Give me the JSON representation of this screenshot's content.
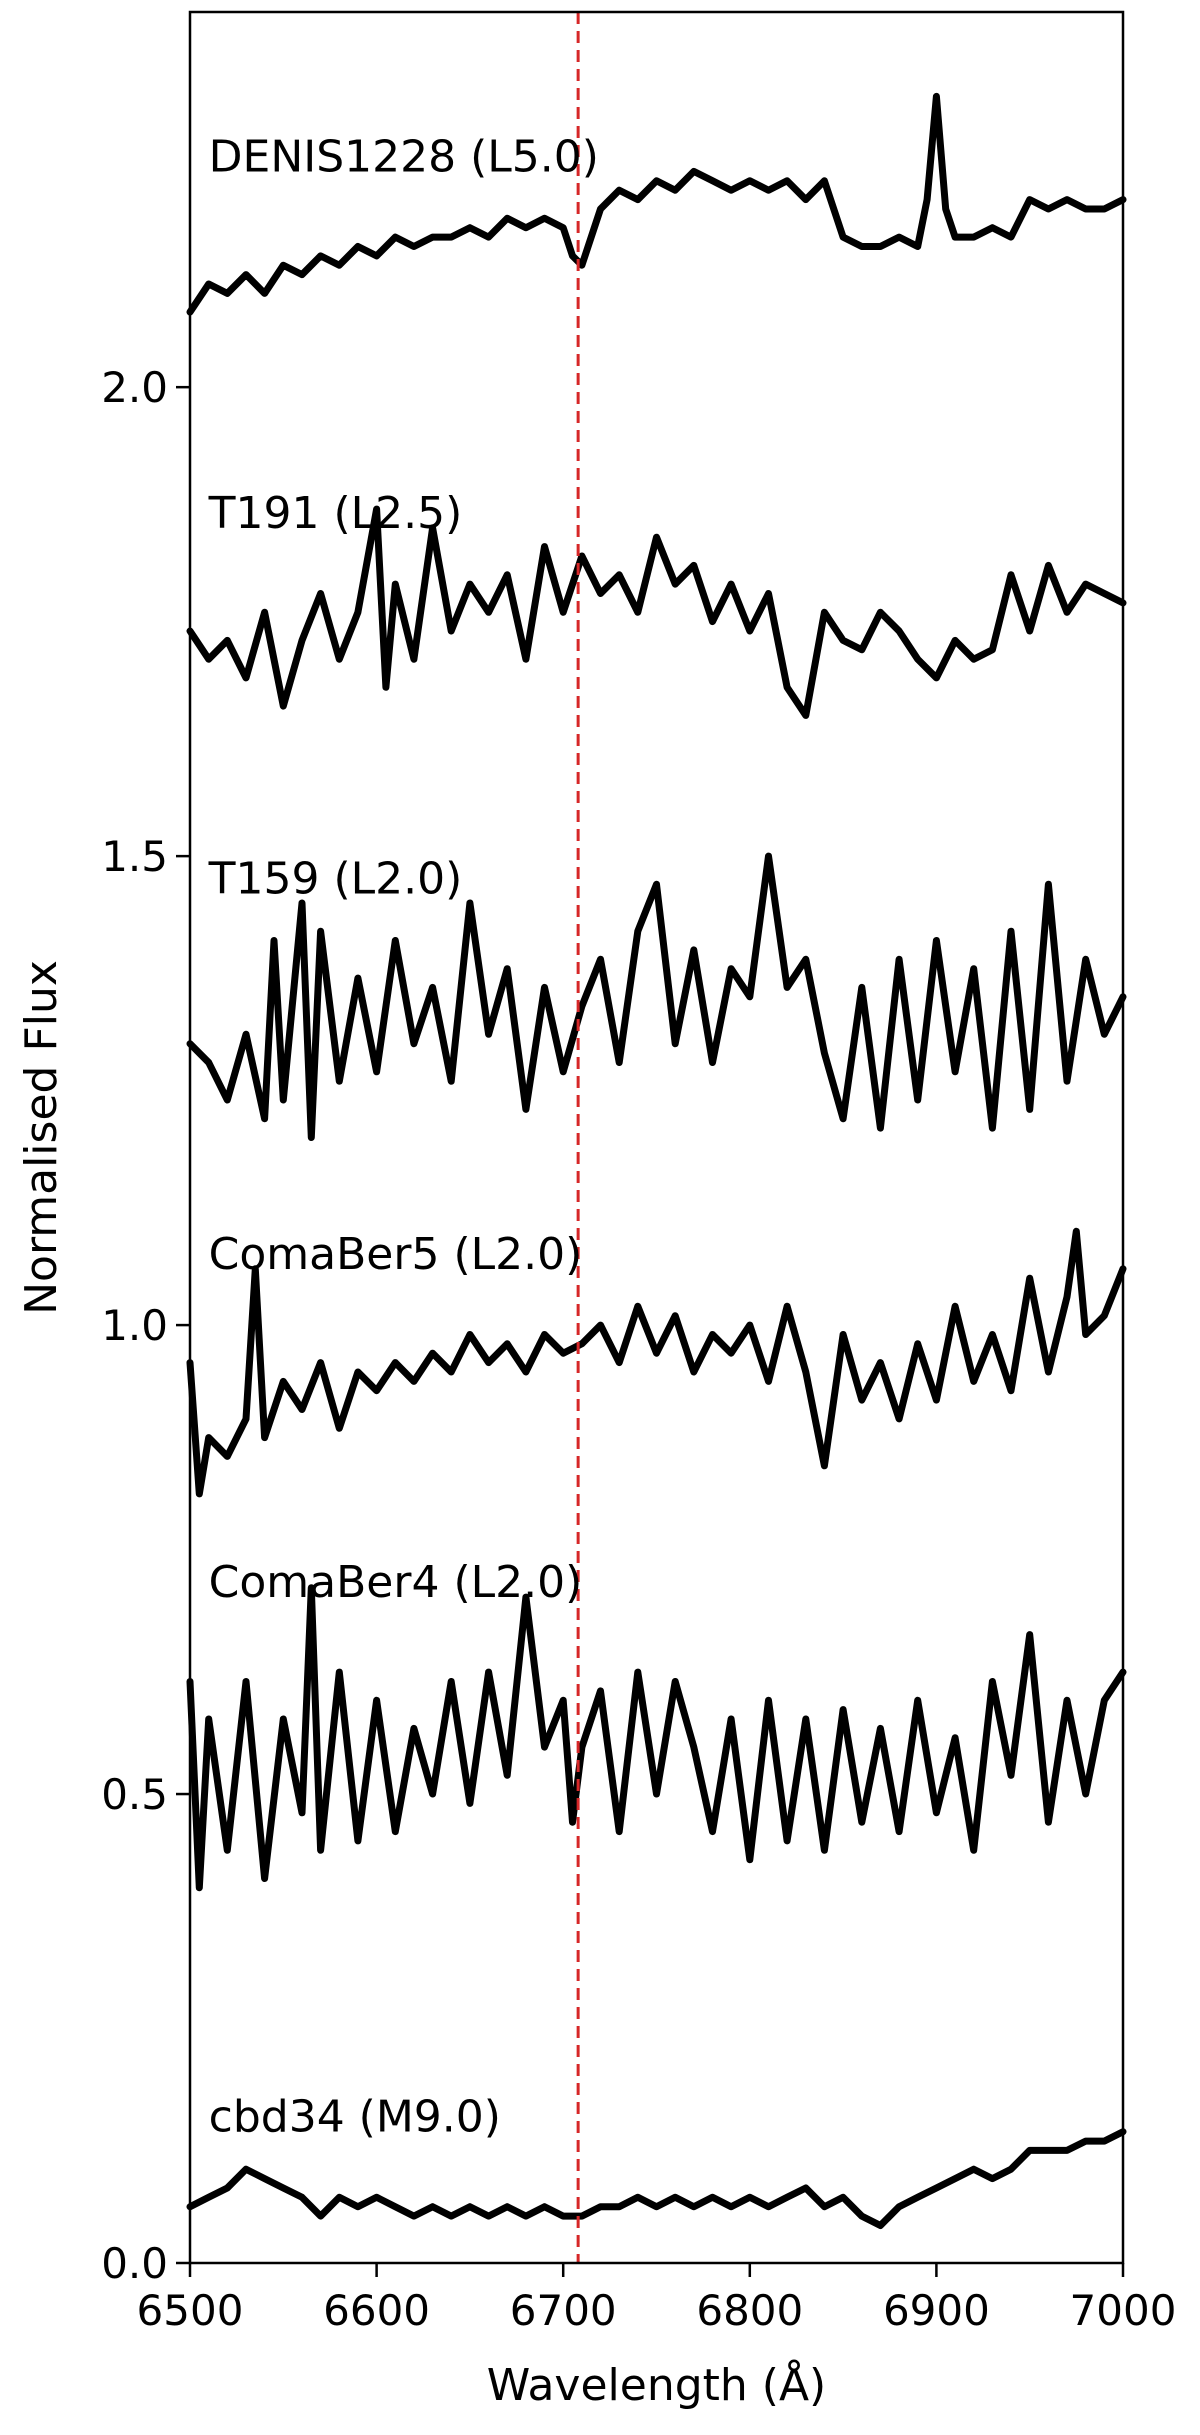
{
  "chart_data": {
    "type": "line",
    "xlabel": "Wavelength (Å)",
    "ylabel": "Normalised Flux",
    "xlim": [
      6500,
      7000
    ],
    "ylim": [
      0.0,
      2.4
    ],
    "x_ticks": [
      "6500",
      "6600",
      "6700",
      "6800",
      "6900",
      "7000"
    ],
    "y_ticks": [
      "0.0",
      "0.5",
      "1.0",
      "1.5",
      "2.0"
    ],
    "grid": false,
    "legend": "none",
    "reference_line": {
      "x": 6708,
      "color": "#d62728",
      "style": "dashed"
    },
    "line_color": "#000000",
    "series": [
      {
        "name": "DENIS1228 (L5.0)",
        "label_pos": [
          6510,
          2.23
        ],
        "x": [
          6500,
          6510,
          6520,
          6530,
          6540,
          6550,
          6560,
          6570,
          6580,
          6590,
          6600,
          6610,
          6620,
          6630,
          6640,
          6650,
          6660,
          6670,
          6680,
          6690,
          6700,
          6705,
          6710,
          6720,
          6730,
          6740,
          6750,
          6760,
          6770,
          6780,
          6790,
          6800,
          6810,
          6820,
          6830,
          6840,
          6850,
          6860,
          6870,
          6880,
          6890,
          6895,
          6900,
          6905,
          6910,
          6920,
          6930,
          6940,
          6950,
          6960,
          6970,
          6980,
          6990,
          7000
        ],
        "y": [
          2.08,
          2.11,
          2.1,
          2.12,
          2.1,
          2.13,
          2.12,
          2.14,
          2.13,
          2.15,
          2.14,
          2.16,
          2.15,
          2.16,
          2.16,
          2.17,
          2.16,
          2.18,
          2.17,
          2.18,
          2.17,
          2.14,
          2.13,
          2.19,
          2.21,
          2.2,
          2.22,
          2.21,
          2.23,
          2.22,
          2.21,
          2.22,
          2.21,
          2.22,
          2.2,
          2.22,
          2.16,
          2.15,
          2.15,
          2.16,
          2.15,
          2.2,
          2.31,
          2.19,
          2.16,
          2.16,
          2.17,
          2.16,
          2.2,
          2.19,
          2.2,
          2.19,
          2.19,
          2.2
        ]
      },
      {
        "name": "T191 (L2.5)",
        "label_pos": [
          6510,
          1.85
        ],
        "x": [
          6500,
          6510,
          6520,
          6530,
          6540,
          6550,
          6560,
          6570,
          6580,
          6590,
          6600,
          6605,
          6610,
          6620,
          6630,
          6640,
          6650,
          6660,
          6670,
          6680,
          6690,
          6700,
          6710,
          6720,
          6730,
          6740,
          6750,
          6760,
          6770,
          6780,
          6790,
          6800,
          6810,
          6820,
          6830,
          6840,
          6850,
          6860,
          6870,
          6880,
          6890,
          6900,
          6910,
          6920,
          6930,
          6940,
          6950,
          6960,
          6970,
          6980,
          6990,
          7000
        ],
        "y": [
          1.74,
          1.71,
          1.73,
          1.69,
          1.76,
          1.66,
          1.73,
          1.78,
          1.71,
          1.76,
          1.87,
          1.68,
          1.79,
          1.71,
          1.85,
          1.74,
          1.79,
          1.76,
          1.8,
          1.71,
          1.83,
          1.76,
          1.82,
          1.78,
          1.8,
          1.76,
          1.84,
          1.79,
          1.81,
          1.75,
          1.79,
          1.74,
          1.78,
          1.68,
          1.65,
          1.76,
          1.73,
          1.72,
          1.76,
          1.74,
          1.71,
          1.69,
          1.73,
          1.71,
          1.72,
          1.8,
          1.74,
          1.81,
          1.76,
          1.79,
          1.78,
          1.77
        ]
      },
      {
        "name": "T159 (L2.0)",
        "label_pos": [
          6510,
          1.46
        ],
        "x": [
          6500,
          6510,
          6520,
          6530,
          6540,
          6545,
          6550,
          6560,
          6565,
          6570,
          6580,
          6590,
          6600,
          6610,
          6620,
          6630,
          6640,
          6650,
          6660,
          6670,
          6680,
          6690,
          6700,
          6710,
          6720,
          6730,
          6740,
          6750,
          6760,
          6770,
          6780,
          6790,
          6800,
          6810,
          6820,
          6830,
          6840,
          6850,
          6860,
          6870,
          6880,
          6890,
          6900,
          6910,
          6920,
          6930,
          6940,
          6950,
          6960,
          6970,
          6980,
          6990,
          7000
        ],
        "y": [
          1.3,
          1.28,
          1.24,
          1.31,
          1.22,
          1.41,
          1.24,
          1.45,
          1.2,
          1.42,
          1.26,
          1.37,
          1.27,
          1.41,
          1.3,
          1.36,
          1.26,
          1.45,
          1.31,
          1.38,
          1.23,
          1.36,
          1.27,
          1.34,
          1.39,
          1.28,
          1.42,
          1.47,
          1.3,
          1.4,
          1.28,
          1.38,
          1.35,
          1.5,
          1.36,
          1.39,
          1.29,
          1.22,
          1.36,
          1.21,
          1.39,
          1.24,
          1.41,
          1.27,
          1.38,
          1.21,
          1.42,
          1.23,
          1.47,
          1.26,
          1.39,
          1.31,
          1.35
        ]
      },
      {
        "name": "ComaBer5 (L2.0)",
        "label_pos": [
          6510,
          1.06
        ],
        "x": [
          6500,
          6505,
          6510,
          6520,
          6530,
          6535,
          6540,
          6550,
          6560,
          6570,
          6580,
          6590,
          6600,
          6610,
          6620,
          6630,
          6640,
          6650,
          6660,
          6670,
          6680,
          6690,
          6700,
          6710,
          6720,
          6730,
          6740,
          6750,
          6760,
          6770,
          6780,
          6790,
          6800,
          6810,
          6820,
          6830,
          6840,
          6850,
          6860,
          6870,
          6880,
          6890,
          6900,
          6910,
          6920,
          6930,
          6940,
          6950,
          6960,
          6970,
          6975,
          6980,
          6990,
          7000
        ],
        "y": [
          0.96,
          0.82,
          0.88,
          0.86,
          0.9,
          1.06,
          0.88,
          0.94,
          0.91,
          0.96,
          0.89,
          0.95,
          0.93,
          0.96,
          0.94,
          0.97,
          0.95,
          0.99,
          0.96,
          0.98,
          0.95,
          0.99,
          0.97,
          0.98,
          1.0,
          0.96,
          1.02,
          0.97,
          1.01,
          0.95,
          0.99,
          0.97,
          1.0,
          0.94,
          1.02,
          0.95,
          0.85,
          0.99,
          0.92,
          0.96,
          0.9,
          0.98,
          0.92,
          1.02,
          0.94,
          0.99,
          0.93,
          1.05,
          0.95,
          1.03,
          1.1,
          0.99,
          1.01,
          1.06
        ]
      },
      {
        "name": "ComaBer4 (L2.0)",
        "label_pos": [
          6510,
          0.71
        ],
        "x": [
          6500,
          6505,
          6510,
          6520,
          6530,
          6540,
          6550,
          6560,
          6565,
          6570,
          6580,
          6590,
          6600,
          6610,
          6620,
          6630,
          6640,
          6650,
          6660,
          6670,
          6680,
          6690,
          6700,
          6705,
          6710,
          6720,
          6730,
          6740,
          6750,
          6760,
          6770,
          6780,
          6790,
          6800,
          6810,
          6820,
          6830,
          6840,
          6850,
          6860,
          6870,
          6880,
          6890,
          6900,
          6910,
          6920,
          6930,
          6940,
          6950,
          6960,
          6970,
          6980,
          6990,
          7000
        ],
        "y": [
          0.62,
          0.4,
          0.58,
          0.44,
          0.62,
          0.41,
          0.58,
          0.48,
          0.72,
          0.44,
          0.63,
          0.45,
          0.6,
          0.46,
          0.57,
          0.5,
          0.62,
          0.49,
          0.63,
          0.52,
          0.71,
          0.55,
          0.6,
          0.47,
          0.55,
          0.61,
          0.46,
          0.63,
          0.5,
          0.62,
          0.55,
          0.46,
          0.58,
          0.43,
          0.6,
          0.45,
          0.58,
          0.44,
          0.59,
          0.47,
          0.57,
          0.46,
          0.6,
          0.48,
          0.56,
          0.44,
          0.62,
          0.52,
          0.67,
          0.47,
          0.6,
          0.5,
          0.6,
          0.63
        ]
      },
      {
        "name": "cbd34 (M9.0)",
        "label_pos": [
          6510,
          0.14
        ],
        "x": [
          6500,
          6510,
          6520,
          6530,
          6540,
          6550,
          6560,
          6570,
          6580,
          6590,
          6600,
          6610,
          6620,
          6630,
          6640,
          6650,
          6660,
          6670,
          6680,
          6690,
          6700,
          6710,
          6720,
          6730,
          6740,
          6750,
          6760,
          6770,
          6780,
          6790,
          6800,
          6810,
          6820,
          6830,
          6840,
          6850,
          6860,
          6870,
          6880,
          6890,
          6900,
          6910,
          6920,
          6930,
          6940,
          6950,
          6960,
          6970,
          6980,
          6990,
          7000
        ],
        "y": [
          0.06,
          0.07,
          0.08,
          0.1,
          0.09,
          0.08,
          0.07,
          0.05,
          0.07,
          0.06,
          0.07,
          0.06,
          0.05,
          0.06,
          0.05,
          0.06,
          0.05,
          0.06,
          0.05,
          0.06,
          0.05,
          0.05,
          0.06,
          0.06,
          0.07,
          0.06,
          0.07,
          0.06,
          0.07,
          0.06,
          0.07,
          0.06,
          0.07,
          0.08,
          0.06,
          0.07,
          0.05,
          0.04,
          0.06,
          0.07,
          0.08,
          0.09,
          0.1,
          0.09,
          0.1,
          0.12,
          0.12,
          0.12,
          0.13,
          0.13,
          0.14
        ]
      }
    ]
  }
}
